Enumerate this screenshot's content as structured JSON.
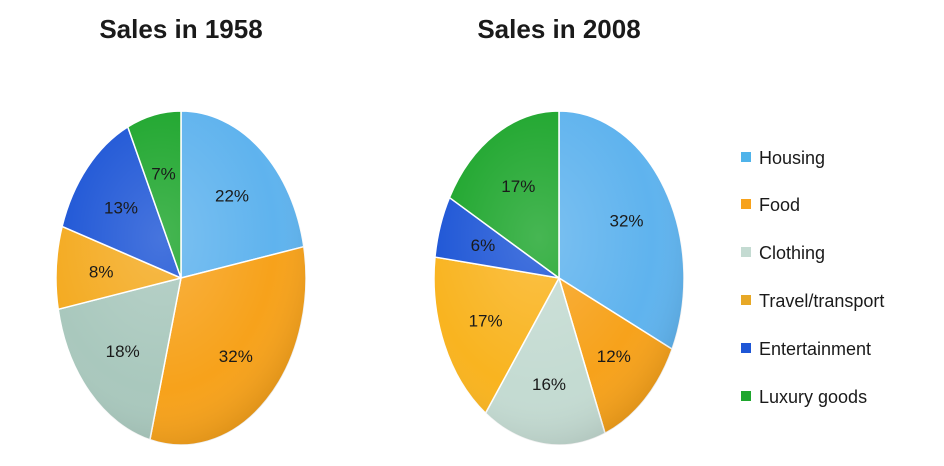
{
  "chart_data": [
    {
      "type": "pie",
      "title": "Sales in 1958",
      "categories": [
        "Housing",
        "Food",
        "Clothing",
        "Travel/transport",
        "Entertainment",
        "Luxury goods"
      ],
      "values": [
        22,
        32,
        18,
        8,
        13,
        7
      ],
      "labels": [
        "22%",
        "32%",
        "18%",
        "8%",
        "13%",
        "7%"
      ],
      "colors": [
        "#5fb3ee",
        "#f7a21b",
        "#a9c8bd",
        "#f4ab22",
        "#1e56d6",
        "#1ea62d"
      ]
    },
    {
      "type": "pie",
      "title": "Sales in 2008",
      "categories": [
        "Housing",
        "Food",
        "Clothing",
        "Travel/transport",
        "Entertainment",
        "Luxury goods"
      ],
      "values": [
        32,
        12,
        16,
        17,
        6,
        17
      ],
      "labels": [
        "32%",
        "12%",
        "16%",
        "17%",
        "6%",
        "17%"
      ],
      "colors": [
        "#5fb3ee",
        "#f7a21b",
        "#c4dbd2",
        "#f9b420",
        "#1e56d6",
        "#1ea62d"
      ]
    }
  ],
  "legend": {
    "position": "right",
    "items": [
      {
        "label": "Housing",
        "color": "#4fb3ea"
      },
      {
        "label": "Food",
        "color": "#f7a21b"
      },
      {
        "label": "Clothing",
        "color": "#c4dbd2"
      },
      {
        "label": "Travel/transport",
        "color": "#e7a826"
      },
      {
        "label": "Entertainment",
        "color": "#1e56d6"
      },
      {
        "label": "Luxury goods",
        "color": "#1ea62d"
      }
    ]
  }
}
